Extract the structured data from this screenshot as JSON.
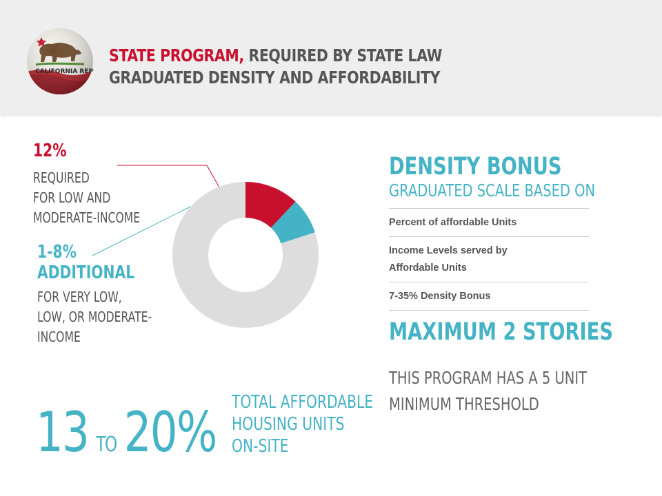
{
  "header": {
    "title_highlight": "STATE PROGRAM,",
    "title_rest": " REQUIRED BY STATE LAW",
    "subtitle": "GRADUATED DENSITY AND AFFORDABILITY",
    "seal_text": "CALIFORNIA REPUBLIC",
    "colors": {
      "highlight": "#c8102e",
      "text": "#555555",
      "band": "#eeeeee"
    }
  },
  "left": {
    "required_pct": "12%",
    "required_desc": [
      "REQUIRED",
      "FOR LOW AND",
      "MODERATE-INCOME"
    ],
    "additional_pct": [
      "1-8%",
      "ADDITIONAL"
    ],
    "additional_desc": [
      "FOR VERY LOW,",
      "LOW, OR MODERATE-",
      "INCOME"
    ]
  },
  "chart_data": {
    "type": "pie",
    "donut": true,
    "series": [
      {
        "value": 12,
        "color": "#c8102e"
      },
      {
        "value": 8,
        "color": "#45b3c6"
      },
      {
        "value": 80,
        "color": "#dddddd"
      }
    ]
  },
  "total": {
    "from": "13",
    "to_word": "TO",
    "to": "20%",
    "label": [
      "TOTAL AFFORDABLE",
      "HOUSING UNITS",
      "ON-SITE"
    ]
  },
  "right": {
    "title": "DENSITY BONUS",
    "subtitle": "GRADUATED SCALE BASED ON",
    "criteria": [
      "Percent of affordable Units",
      "Income Levels served by Affordable Units",
      "7-35% Density Bonus"
    ],
    "max_stories": "MAXIMUM 2 STORIES",
    "program_note": [
      "THIS PROGRAM HAS A 5 UNIT",
      "MINIMUM THRESHOLD"
    ],
    "colors": {
      "accent": "#45b3c6",
      "divider": "#cccccc"
    }
  }
}
